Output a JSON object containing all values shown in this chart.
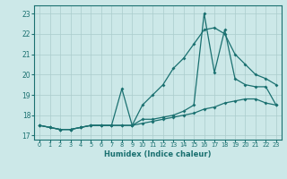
{
  "xlabel": "Humidex (Indice chaleur)",
  "bg_color": "#cce8e8",
  "grid_color": "#aacccc",
  "line_color": "#1a7070",
  "xlim": [
    -0.5,
    23.5
  ],
  "ylim": [
    16.8,
    23.4
  ],
  "xticks": [
    0,
    1,
    2,
    3,
    4,
    5,
    6,
    7,
    8,
    9,
    10,
    11,
    12,
    13,
    14,
    15,
    16,
    17,
    18,
    19,
    20,
    21,
    22,
    23
  ],
  "yticks": [
    17,
    18,
    19,
    20,
    21,
    22,
    23
  ],
  "line1_x": [
    0,
    1,
    2,
    3,
    4,
    5,
    6,
    7,
    8,
    9,
    10,
    11,
    12,
    13,
    14,
    15,
    16,
    17,
    18,
    19,
    20,
    21,
    22,
    23
  ],
  "line1_y": [
    17.5,
    17.4,
    17.3,
    17.3,
    17.4,
    17.5,
    17.5,
    17.5,
    17.5,
    17.5,
    18.5,
    19.0,
    19.5,
    20.3,
    20.8,
    21.5,
    22.2,
    22.3,
    22.0,
    21.0,
    20.5,
    20.0,
    19.8,
    19.5
  ],
  "line2_x": [
    0,
    1,
    2,
    3,
    4,
    5,
    6,
    7,
    8,
    9,
    10,
    11,
    12,
    13,
    14,
    15,
    16,
    17,
    18,
    19,
    20,
    21,
    22,
    23
  ],
  "line2_y": [
    17.5,
    17.4,
    17.3,
    17.3,
    17.4,
    17.5,
    17.5,
    17.5,
    19.3,
    17.5,
    17.8,
    17.8,
    17.9,
    18.0,
    18.2,
    18.5,
    23.0,
    20.1,
    22.2,
    19.8,
    19.5,
    19.4,
    19.4,
    18.5
  ],
  "line3_x": [
    0,
    1,
    2,
    3,
    4,
    5,
    6,
    7,
    8,
    9,
    10,
    11,
    12,
    13,
    14,
    15,
    16,
    17,
    18,
    19,
    20,
    21,
    22,
    23
  ],
  "line3_y": [
    17.5,
    17.4,
    17.3,
    17.3,
    17.4,
    17.5,
    17.5,
    17.5,
    17.5,
    17.5,
    17.6,
    17.7,
    17.8,
    17.9,
    18.0,
    18.1,
    18.3,
    18.4,
    18.6,
    18.7,
    18.8,
    18.8,
    18.6,
    18.5
  ]
}
